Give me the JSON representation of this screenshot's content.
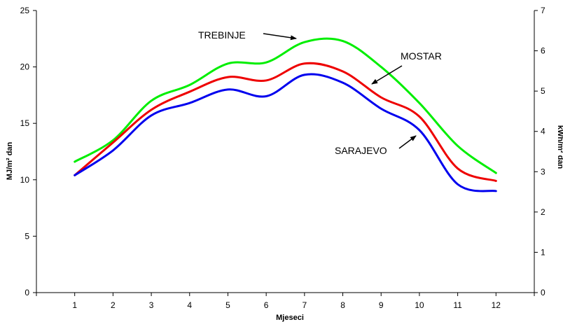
{
  "chart_data": {
    "type": "line",
    "xlabel": "Mjeseci",
    "ylabel_left": "MJ/m² dan",
    "ylabel_right": "kWh/m² dan",
    "x": [
      1,
      2,
      3,
      4,
      5,
      6,
      7,
      8,
      9,
      10,
      11,
      12
    ],
    "xlim": [
      0,
      13
    ],
    "ylim_left": [
      0,
      25
    ],
    "ylim_right": [
      0,
      7
    ],
    "yticks_left": [
      "0",
      "5",
      "10",
      "15",
      "20",
      "25"
    ],
    "yticks_right": [
      "0",
      "1",
      "2",
      "3",
      "4",
      "5",
      "6",
      "7"
    ],
    "xticks": [
      "1",
      "2",
      "3",
      "4",
      "5",
      "6",
      "7",
      "8",
      "9",
      "10",
      "11",
      "12"
    ],
    "grid": false,
    "series": [
      {
        "name": "TREBINJE",
        "color": "#00ee00",
        "values": [
          11.6,
          13.5,
          17.0,
          18.4,
          20.3,
          20.4,
          22.2,
          22.3,
          20.0,
          16.8,
          13.0,
          10.6
        ]
      },
      {
        "name": "MOSTAR",
        "color": "#ee0000",
        "values": [
          10.4,
          13.3,
          16.2,
          17.8,
          19.1,
          18.8,
          20.3,
          19.6,
          17.3,
          15.6,
          11.0,
          9.9
        ]
      },
      {
        "name": "SARAJEVO",
        "color": "#0000ee",
        "values": [
          10.4,
          12.6,
          15.7,
          16.8,
          18.0,
          17.4,
          19.3,
          18.6,
          16.3,
          14.4,
          9.6,
          9.0
        ]
      }
    ],
    "annotations": [
      "TREBINJE",
      "MOSTAR",
      "SARAJEVO"
    ]
  }
}
